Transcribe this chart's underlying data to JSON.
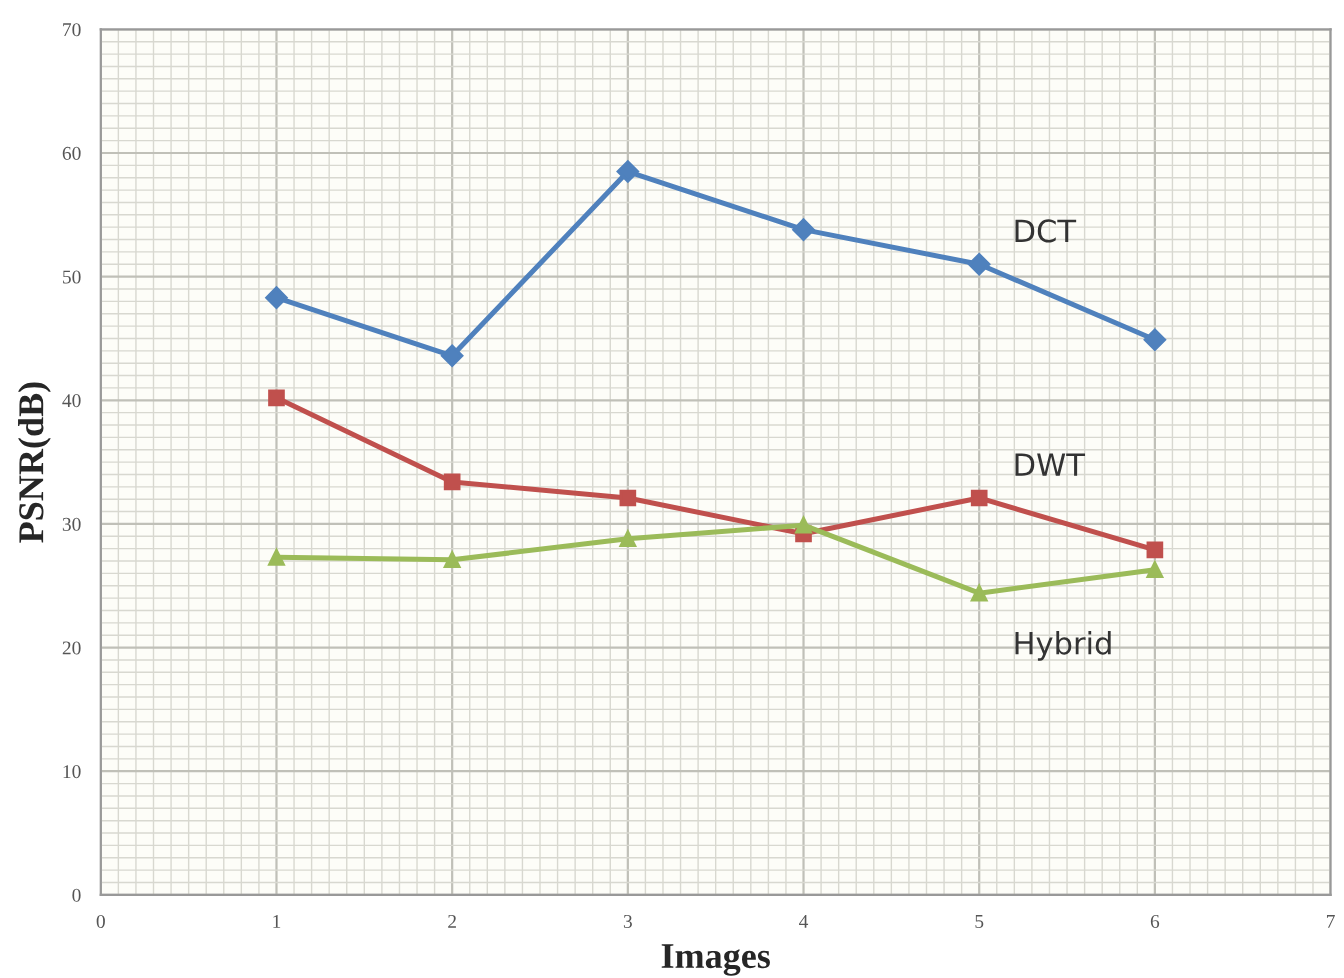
{
  "chart_data": {
    "type": "line",
    "xlabel": "Images",
    "ylabel": "PSNR(dB)",
    "x": [
      1,
      2,
      3,
      4,
      5,
      6
    ],
    "xlim": [
      0,
      7
    ],
    "xticks": [
      0,
      1,
      2,
      3,
      4,
      5,
      6,
      7
    ],
    "ylim": [
      0,
      70
    ],
    "yticks": [
      0,
      10,
      20,
      30,
      40,
      50,
      60,
      70
    ],
    "grid": true,
    "legend": false,
    "series": [
      {
        "name": "DCT",
        "color": "#4f81bd",
        "marker": "diamond",
        "values": [
          48.3,
          43.6,
          58.5,
          53.8,
          51.0,
          44.9
        ]
      },
      {
        "name": "DWT",
        "color": "#c0504d",
        "marker": "square",
        "values": [
          40.2,
          33.4,
          32.1,
          29.2,
          32.1,
          27.9
        ]
      },
      {
        "name": "Hybrid",
        "color": "#9bbb59",
        "marker": "triangle",
        "values": [
          27.3,
          27.1,
          28.8,
          29.9,
          24.4,
          26.3
        ]
      }
    ]
  }
}
